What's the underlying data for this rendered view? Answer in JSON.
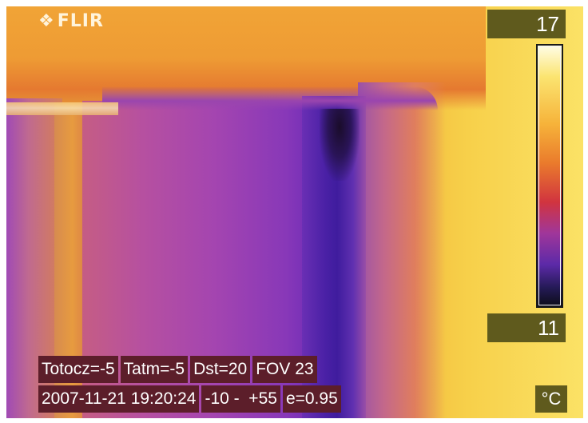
{
  "camera": {
    "brand": "FLIR",
    "brand_icon": "flir-logo-icon"
  },
  "scale": {
    "max": "17",
    "min": "11",
    "unit": "°C"
  },
  "info": {
    "row1": {
      "totocz": "Totocz=-5",
      "tatm": "Tatm=-5",
      "dst": "Dst=20",
      "fov": "FOV 23"
    },
    "row2": {
      "datetime": "2007-11-21 19:20:24",
      "range": "-10 -  +55",
      "emissivity": "e=0.95"
    }
  },
  "palette": {
    "hot": "#fbe266",
    "warm": "#e49a37",
    "cool": "#a445b0",
    "cold": "#3f1c9e",
    "coldest": "#1a0c2a",
    "label_bg": "#5c1e2a",
    "scale_bg": "#5f5a1d"
  }
}
